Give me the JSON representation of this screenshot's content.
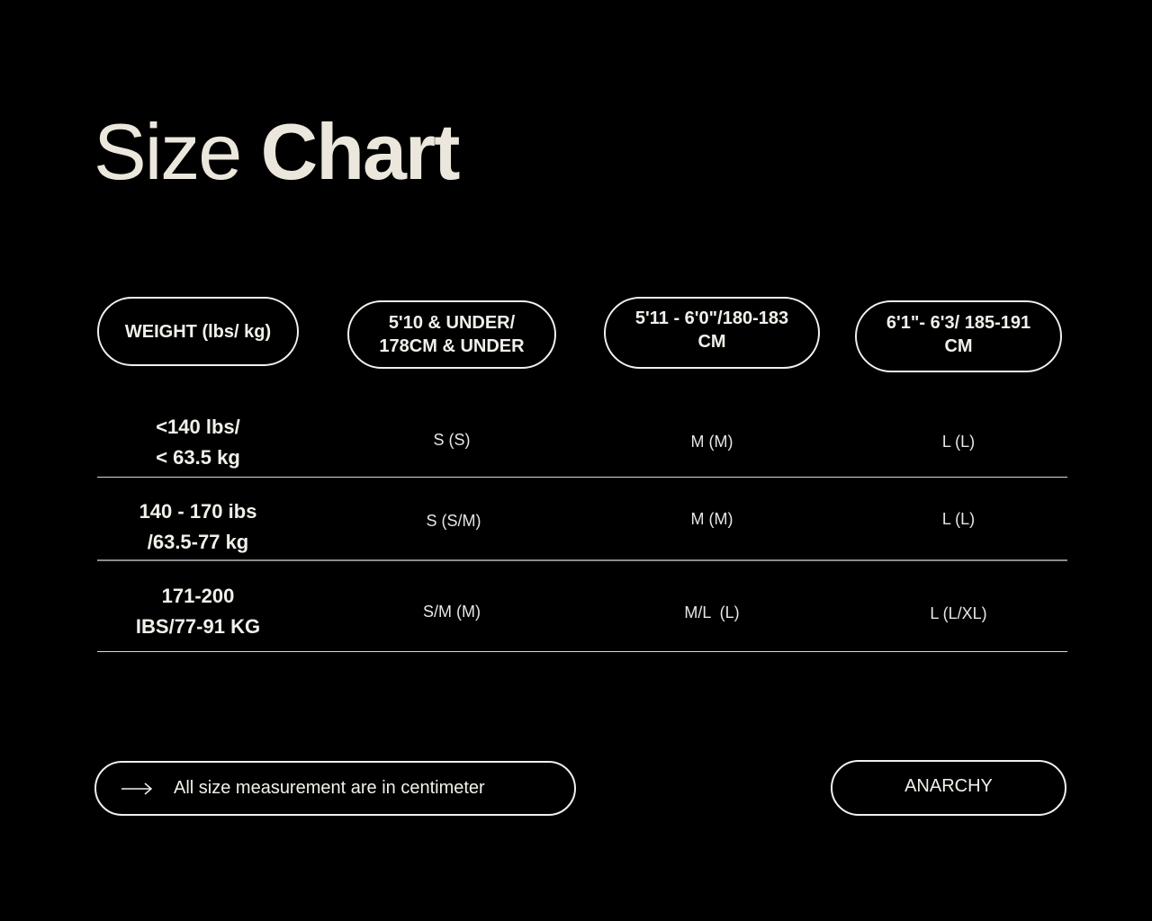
{
  "title": {
    "light": "Size",
    "bold": "Chart"
  },
  "table": {
    "headers": [
      "WEIGHT (lbs/ kg)",
      "5'10 & UNDER/ 178CM & UNDER",
      "5'11 - 6'0\"/180-183 CM",
      "6'1\"- 6'3/ 185-191 CM"
    ],
    "header_lines": [
      [
        "WEIGHT (lbs/ kg)"
      ],
      [
        "5'10 & UNDER/",
        "178CM & UNDER"
      ],
      [
        "5'11 - 6'0\"/180-183",
        "CM"
      ],
      [
        "6'1\"- 6'3/ 185-191",
        "CM"
      ]
    ],
    "rows": [
      {
        "weight": [
          "<140 lbs/",
          "< 63.5 kg"
        ],
        "sizes": [
          "S (S)",
          "M (M)",
          "L (L)"
        ]
      },
      {
        "weight": [
          "140 - 170 ibs",
          "/63.5-77 kg"
        ],
        "sizes": [
          "S (S/M)",
          "M (M)",
          "L (L)"
        ]
      },
      {
        "weight": [
          "171-200",
          "IBS/77-91 KG"
        ],
        "sizes": [
          "S/M (M)",
          "M/L  (L)",
          "L (L/XL)"
        ]
      }
    ]
  },
  "footer": {
    "arrow_icon": "arrow-right-icon",
    "note": "All size measurement are in centimeter",
    "brand": "ANARCHY"
  },
  "colors": {
    "background": "#000000",
    "foreground": "#f2f0ea"
  }
}
